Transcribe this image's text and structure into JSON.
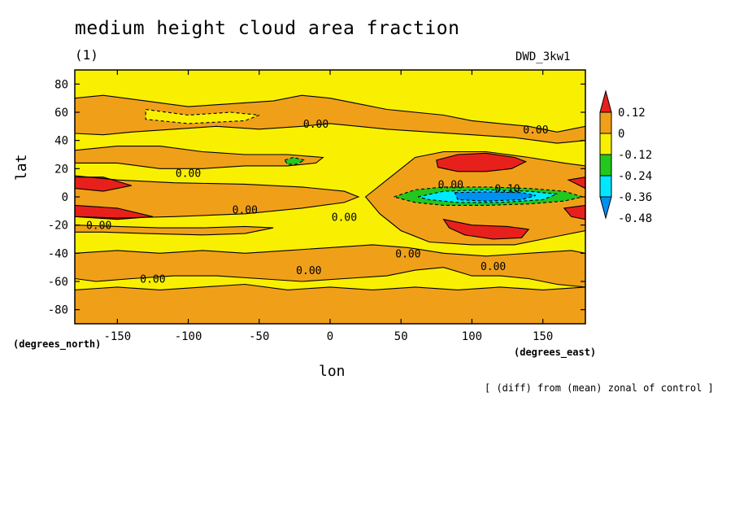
{
  "chart_data": {
    "type": "heatmap",
    "title": "medium height cloud area fraction",
    "subtitle": "(1)",
    "model": "DWD_3kw1",
    "xlabel": "lon",
    "ylabel": "lat",
    "x_units": "(degrees_east)",
    "y_units": "(degrees_north)",
    "note": "[ (diff) from (mean) zonal of control ]",
    "xlim": [
      -180,
      180
    ],
    "ylim": [
      -90,
      90
    ],
    "x_ticks": [
      -150,
      -100,
      -50,
      0,
      50,
      100,
      150
    ],
    "y_ticks": [
      -80,
      -60,
      -40,
      -20,
      0,
      20,
      40,
      60,
      80
    ],
    "x_tick_labels": [
      "-150",
      "-100",
      "-50",
      "0",
      "50",
      "100",
      "150"
    ],
    "y_tick_labels": [
      "-80",
      "-60",
      "-40",
      "-20",
      "0",
      "20",
      "40",
      "60",
      "80"
    ],
    "colorbar": {
      "labels": [
        "0.12",
        "0",
        "-0.12",
        "-0.24",
        "-0.36",
        "-0.48"
      ],
      "bins": [
        {
          "range": [
            0.12,
            null
          ],
          "color": "#e8201c"
        },
        {
          "range": [
            0,
            0.12
          ],
          "color": "#f0a018"
        },
        {
          "range": [
            -0.12,
            0
          ],
          "color": "#f8f000"
        },
        {
          "range": [
            -0.24,
            -0.12
          ],
          "color": "#22c81e"
        },
        {
          "range": [
            -0.36,
            -0.24
          ],
          "color": "#00e8ff"
        },
        {
          "range": [
            null,
            -0.36
          ],
          "color": "#0090f0"
        }
      ]
    },
    "regions": [
      {
        "name": "north-orange-band",
        "level": 0.06,
        "points": [
          [
            -180,
            70
          ],
          [
            -160,
            72
          ],
          [
            -130,
            68
          ],
          [
            -100,
            64
          ],
          [
            -70,
            66
          ],
          [
            -40,
            68
          ],
          [
            -20,
            72
          ],
          [
            0,
            70
          ],
          [
            20,
            66
          ],
          [
            40,
            62
          ],
          [
            60,
            60
          ],
          [
            80,
            58
          ],
          [
            100,
            54
          ],
          [
            120,
            52
          ],
          [
            140,
            50
          ],
          [
            160,
            46
          ],
          [
            180,
            50
          ],
          [
            180,
            40
          ],
          [
            160,
            38
          ],
          [
            130,
            42
          ],
          [
            100,
            44
          ],
          [
            70,
            46
          ],
          [
            40,
            48
          ],
          [
            20,
            50
          ],
          [
            0,
            52
          ],
          [
            -20,
            50
          ],
          [
            -50,
            48
          ],
          [
            -80,
            50
          ],
          [
            -110,
            48
          ],
          [
            -140,
            46
          ],
          [
            -160,
            44
          ],
          [
            -180,
            45
          ]
        ]
      },
      {
        "name": "north-top-yellow-patch",
        "level": -0.03,
        "points": [
          [
            -130,
            62
          ],
          [
            -100,
            58
          ],
          [
            -70,
            60
          ],
          [
            -50,
            58
          ],
          [
            -60,
            54
          ],
          [
            -100,
            52
          ],
          [
            -130,
            55
          ]
        ]
      },
      {
        "name": "north-subtropical-orange",
        "level": 0.06,
        "points": [
          [
            -180,
            33
          ],
          [
            -150,
            36
          ],
          [
            -120,
            36
          ],
          [
            -90,
            32
          ],
          [
            -60,
            30
          ],
          [
            -30,
            30
          ],
          [
            -5,
            28
          ],
          [
            -10,
            24
          ],
          [
            -30,
            22
          ],
          [
            -60,
            22
          ],
          [
            -90,
            20
          ],
          [
            -120,
            20
          ],
          [
            -150,
            24
          ],
          [
            -180,
            24
          ]
        ]
      },
      {
        "name": "equatorial-orange-west",
        "level": 0.06,
        "points": [
          [
            -180,
            15
          ],
          [
            -150,
            12
          ],
          [
            -110,
            10
          ],
          [
            -60,
            9
          ],
          [
            -20,
            7
          ],
          [
            10,
            4
          ],
          [
            20,
            0
          ],
          [
            10,
            -4
          ],
          [
            -20,
            -8
          ],
          [
            -60,
            -12
          ],
          [
            -110,
            -14
          ],
          [
            -150,
            -15
          ],
          [
            -180,
            -14
          ]
        ]
      },
      {
        "name": "east-tropical-orange",
        "level": 0.06,
        "points": [
          [
            25,
            0
          ],
          [
            40,
            12
          ],
          [
            60,
            28
          ],
          [
            80,
            32
          ],
          [
            110,
            32
          ],
          [
            140,
            28
          ],
          [
            165,
            24
          ],
          [
            180,
            22
          ],
          [
            180,
            -24
          ],
          [
            160,
            -28
          ],
          [
            130,
            -34
          ],
          [
            100,
            -34
          ],
          [
            70,
            -32
          ],
          [
            50,
            -24
          ],
          [
            35,
            -12
          ]
        ]
      },
      {
        "name": "north-red-east",
        "level": 0.15,
        "points": [
          [
            75,
            26
          ],
          [
            90,
            30
          ],
          [
            110,
            31
          ],
          [
            130,
            28
          ],
          [
            138,
            25
          ],
          [
            128,
            20
          ],
          [
            110,
            18
          ],
          [
            90,
            18
          ],
          [
            76,
            21
          ]
        ]
      },
      {
        "name": "south-red-east",
        "level": 0.15,
        "points": [
          [
            80,
            -16
          ],
          [
            100,
            -20
          ],
          [
            125,
            -21
          ],
          [
            140,
            -23
          ],
          [
            135,
            -29
          ],
          [
            115,
            -30
          ],
          [
            95,
            -27
          ],
          [
            84,
            -22
          ]
        ]
      },
      {
        "name": "red-west-north",
        "level": 0.15,
        "points": [
          [
            -180,
            14
          ],
          [
            -160,
            14
          ],
          [
            -140,
            8
          ],
          [
            -160,
            4
          ],
          [
            -180,
            6
          ]
        ]
      },
      {
        "name": "red-west-south",
        "level": 0.15,
        "points": [
          [
            -180,
            -6
          ],
          [
            -150,
            -8
          ],
          [
            -125,
            -14
          ],
          [
            -150,
            -16
          ],
          [
            -180,
            -14
          ]
        ]
      },
      {
        "name": "red-east-edge-north",
        "level": 0.15,
        "points": [
          [
            168,
            12
          ],
          [
            180,
            14
          ],
          [
            180,
            6
          ]
        ]
      },
      {
        "name": "red-east-edge-south",
        "level": 0.15,
        "points": [
          [
            165,
            -8
          ],
          [
            180,
            -6
          ],
          [
            180,
            -16
          ],
          [
            170,
            -14
          ]
        ]
      },
      {
        "name": "equatorial-green",
        "level": -0.18,
        "points": [
          [
            45,
            0
          ],
          [
            60,
            5
          ],
          [
            80,
            7
          ],
          [
            110,
            7
          ],
          [
            140,
            6
          ],
          [
            165,
            4
          ],
          [
            178,
            0
          ],
          [
            165,
            -3
          ],
          [
            140,
            -5
          ],
          [
            110,
            -6
          ],
          [
            80,
            -6
          ],
          [
            60,
            -4
          ]
        ]
      },
      {
        "name": "equatorial-cyan",
        "level": -0.3,
        "points": [
          [
            62,
            0
          ],
          [
            80,
            4
          ],
          [
            110,
            5
          ],
          [
            140,
            4
          ],
          [
            160,
            2
          ],
          [
            150,
            -2
          ],
          [
            120,
            -4
          ],
          [
            90,
            -4
          ],
          [
            70,
            -2
          ]
        ]
      },
      {
        "name": "equatorial-blue",
        "level": -0.42,
        "points": [
          [
            88,
            3
          ],
          [
            110,
            3.5
          ],
          [
            135,
            3
          ],
          [
            145,
            1
          ],
          [
            135,
            -2
          ],
          [
            110,
            -3
          ],
          [
            90,
            -2
          ]
        ]
      },
      {
        "name": "green-blob-atlantic",
        "level": -0.18,
        "points": [
          [
            -32,
            26
          ],
          [
            -26,
            28
          ],
          [
            -18,
            26
          ],
          [
            -24,
            23
          ],
          [
            -30,
            23
          ]
        ]
      },
      {
        "name": "south-subtropical-orange",
        "level": 0.06,
        "points": [
          [
            -180,
            -40
          ],
          [
            -150,
            -38
          ],
          [
            -120,
            -40
          ],
          [
            -90,
            -38
          ],
          [
            -60,
            -40
          ],
          [
            -30,
            -38
          ],
          [
            0,
            -36
          ],
          [
            30,
            -34
          ],
          [
            55,
            -36
          ],
          [
            80,
            -40
          ],
          [
            110,
            -42
          ],
          [
            140,
            -40
          ],
          [
            170,
            -38
          ],
          [
            180,
            -40
          ],
          [
            180,
            -64
          ],
          [
            160,
            -62
          ],
          [
            140,
            -58
          ],
          [
            120,
            -56
          ],
          [
            100,
            -56
          ],
          [
            80,
            -50
          ],
          [
            60,
            -52
          ],
          [
            40,
            -56
          ],
          [
            10,
            -58
          ],
          [
            -20,
            -60
          ],
          [
            -50,
            -58
          ],
          [
            -80,
            -56
          ],
          [
            -110,
            -56
          ],
          [
            -140,
            -58
          ],
          [
            -165,
            -60
          ],
          [
            -180,
            -58
          ]
        ]
      },
      {
        "name": "south-mid-orange",
        "level": 0.06,
        "points": [
          [
            -180,
            -20
          ],
          [
            -150,
            -21
          ],
          [
            -120,
            -22
          ],
          [
            -90,
            -22
          ],
          [
            -60,
            -21
          ],
          [
            -40,
            -22
          ],
          [
            -60,
            -26
          ],
          [
            -90,
            -27
          ],
          [
            -130,
            -26
          ],
          [
            -160,
            -25
          ],
          [
            -180,
            -25
          ]
        ]
      },
      {
        "name": "antarctic-orange",
        "level": 0.06,
        "points": [
          [
            -180,
            -66
          ],
          [
            -150,
            -64
          ],
          [
            -120,
            -66
          ],
          [
            -90,
            -64
          ],
          [
            -60,
            -62
          ],
          [
            -30,
            -66
          ],
          [
            0,
            -64
          ],
          [
            30,
            -66
          ],
          [
            60,
            -64
          ],
          [
            90,
            -66
          ],
          [
            120,
            -64
          ],
          [
            150,
            -66
          ],
          [
            180,
            -64
          ],
          [
            180,
            -90
          ],
          [
            -180,
            -90
          ]
        ]
      }
    ],
    "contour_labels": [
      {
        "text": "0.00",
        "x": -10,
        "y": 52
      },
      {
        "text": "0.00",
        "x": 145,
        "y": 48
      },
      {
        "text": "0.00",
        "x": -100,
        "y": 17
      },
      {
        "text": "0.00",
        "x": -60,
        "y": -9
      },
      {
        "text": "0.00",
        "x": 10,
        "y": -14
      },
      {
        "text": "0.00",
        "x": -163,
        "y": -20
      },
      {
        "text": "0.00",
        "x": 85,
        "y": 9
      },
      {
        "text": "0.10",
        "x": 125,
        "y": 6
      },
      {
        "text": "0.00",
        "x": -15,
        "y": -52
      },
      {
        "text": "0.00",
        "x": 55,
        "y": -40
      },
      {
        "text": "0.00",
        "x": 115,
        "y": -49
      },
      {
        "text": "0.00",
        "x": -125,
        "y": -58
      }
    ]
  }
}
